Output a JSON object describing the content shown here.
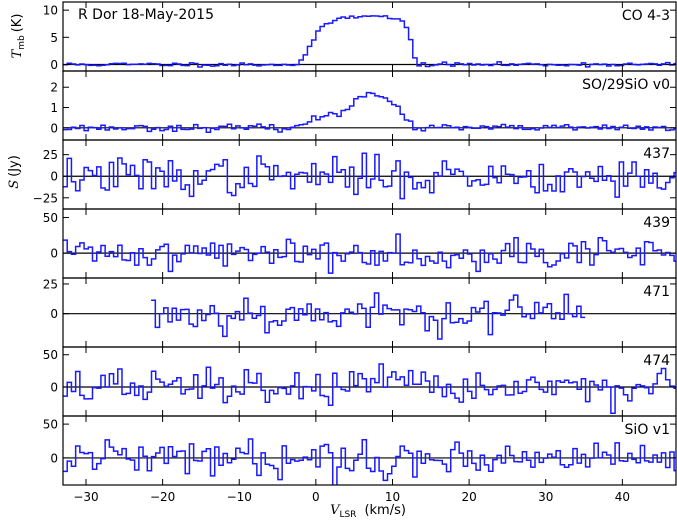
{
  "chart_data": {
    "type": "line",
    "line_style": "steps",
    "series_color": "#1a1aff",
    "baseline_color": "#000000",
    "header_text": "R Dor  18-May-2015",
    "xlabel": {
      "symbol": "V",
      "sub": "LSR",
      "unit": "(km/s)"
    },
    "ylabel_top": {
      "symbol": "T",
      "sub": "mb",
      "unit": "(K)"
    },
    "ylabel_mid": {
      "symbol": "S",
      "unit": "(Jy)"
    },
    "xlim": [
      -33,
      47
    ],
    "xticks": [
      -30,
      -20,
      -10,
      0,
      10,
      20,
      30,
      40
    ],
    "xtick_labels": [
      "−30",
      "−20",
      "−10",
      "0",
      "10",
      "20",
      "30",
      "40"
    ],
    "panels": [
      {
        "label": "CO 4-3",
        "ylim": [
          -1.2,
          11.5
        ],
        "yticks": [
          0,
          5,
          10
        ],
        "ytick_labels": [
          "0",
          "5",
          "10"
        ],
        "xrange": [
          -33,
          47
        ],
        "noise": 0.18,
        "seed": 11,
        "profile": [
          [
            -33,
            0
          ],
          [
            -2.5,
            0
          ],
          [
            -1.8,
            0.8
          ],
          [
            -1.2,
            2.2
          ],
          [
            -0.5,
            4.2
          ],
          [
            0.5,
            6.2
          ],
          [
            1.5,
            7.5
          ],
          [
            3,
            8.5
          ],
          [
            5,
            8.8
          ],
          [
            7,
            9.2
          ],
          [
            9,
            8.7
          ],
          [
            10.5,
            8.4
          ],
          [
            11.5,
            7.8
          ],
          [
            12.3,
            5
          ],
          [
            12.8,
            1.5
          ],
          [
            13.4,
            0
          ],
          [
            47,
            0
          ]
        ]
      },
      {
        "label": "SO/29SiO v0",
        "ylim": [
          -0.6,
          2.8
        ],
        "yticks": [
          0,
          1,
          2
        ],
        "ytick_labels": [
          "0",
          "1",
          "2"
        ],
        "xrange": [
          -33,
          47
        ],
        "noise": 0.08,
        "seed": 23,
        "profile": [
          [
            -33,
            0
          ],
          [
            -2.5,
            0
          ],
          [
            0,
            0.45
          ],
          [
            1.5,
            0.7
          ],
          [
            3,
            0.6
          ],
          [
            4.5,
            1.1
          ],
          [
            5.5,
            1.55
          ],
          [
            7,
            1.8
          ],
          [
            8.5,
            1.6
          ],
          [
            10,
            1.2
          ],
          [
            11.5,
            0.5
          ],
          [
            13,
            0
          ],
          [
            47,
            0
          ]
        ]
      },
      {
        "label": "437",
        "ylim": [
          -38,
          42
        ],
        "yticks": [
          -25,
          0,
          25
        ],
        "ytick_labels": [
          "−25",
          "0",
          "25"
        ],
        "xrange": [
          -33,
          47
        ],
        "noise": 11,
        "seed": 37,
        "profile": [
          [
            -33,
            0
          ],
          [
            47,
            0
          ]
        ]
      },
      {
        "label": "439",
        "ylim": [
          -35,
          62
        ],
        "yticks": [
          0,
          50
        ],
        "ytick_labels": [
          "0",
          "50"
        ],
        "xrange": [
          -33,
          47
        ],
        "noise": 11,
        "seed": 41,
        "profile": [
          [
            -33,
            0
          ],
          [
            47,
            0
          ]
        ]
      },
      {
        "label": "471",
        "ylim": [
          -28,
          30
        ],
        "yticks": [
          0,
          25
        ],
        "ytick_labels": [
          "0",
          "25"
        ],
        "xrange": [
          -21.5,
          35
        ],
        "noise": 8,
        "seed": 53,
        "profile": [
          [
            -33,
            0
          ],
          [
            47,
            0
          ]
        ]
      },
      {
        "label": "474",
        "ylim": [
          -45,
          62
        ],
        "yticks": [
          0,
          50
        ],
        "ytick_labels": [
          "0",
          "50"
        ],
        "xrange": [
          -33,
          47
        ],
        "noise": 14,
        "seed": 67,
        "profile": [
          [
            -33,
            0
          ],
          [
            47,
            0
          ]
        ]
      },
      {
        "label": "SiO v1",
        "ylim": [
          -40,
          62
        ],
        "yticks": [
          0,
          50
        ],
        "ytick_labels": [
          "0",
          "50"
        ],
        "xrange": [
          -33,
          47
        ],
        "noise": 13,
        "seed": 79,
        "profile": [
          [
            -33,
            0
          ],
          [
            47,
            0
          ]
        ]
      }
    ],
    "channel_width": 0.55,
    "grid": false,
    "legend": "none"
  }
}
